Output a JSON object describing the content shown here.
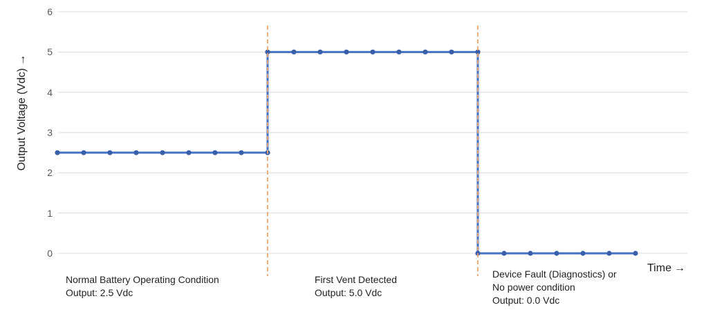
{
  "chart_data": {
    "type": "line",
    "title": "",
    "ylabel": "Output Voltage (Vdc)",
    "xlabel": "Time",
    "xlim": [
      0,
      24
    ],
    "ylim": [
      0,
      6
    ],
    "yticks": [
      6,
      5,
      4,
      3,
      2,
      1,
      0
    ],
    "xticks": [],
    "grid": "horizontal-only",
    "legend": "none",
    "line_color": "#4472C4",
    "marker_color": "#3A5FA9",
    "gridline_color": "#dcdcdc",
    "event_line_color": "#EDA670",
    "marker_interval": 1,
    "segments": [
      {
        "y": 2.5,
        "x_start": 0,
        "x_end": 8,
        "label": "Normal Battery Operating Condition"
      },
      {
        "y": 5.0,
        "x_start": 8,
        "x_end": 16,
        "label": "First Vent Detected"
      },
      {
        "y": 0.0,
        "x_start": 16,
        "x_end": 22,
        "label": "Device Fault (Diagnostics) or No power condition"
      }
    ],
    "event_lines": [
      {
        "x": 8,
        "style": "dashed"
      },
      {
        "x": 16,
        "style": "dashed"
      }
    ]
  },
  "annotations": [
    {
      "lines": [
        "Normal Battery Operating Condition",
        "Output: 2.5 Vdc"
      ]
    },
    {
      "lines": [
        "First Vent Detected",
        "Output: 5.0 Vdc"
      ]
    },
    {
      "lines": [
        "Device Fault (Diagnostics) or",
        "No power condition",
        "Output: 0.0 Vdc"
      ]
    }
  ],
  "icons": {
    "up_arrow": "→",
    "right_arrow": "→"
  }
}
